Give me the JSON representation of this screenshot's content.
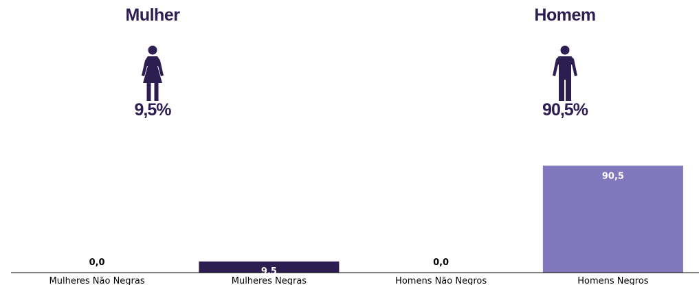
{
  "panels": {
    "female": {
      "title": "Mulher",
      "percent": "9,5%",
      "icon": "female-person-icon"
    },
    "male": {
      "title": "Homem",
      "percent": "90,5%",
      "icon": "male-person-icon"
    }
  },
  "colors": {
    "text_dark": "#2c1e50",
    "bar_dark": "#2c1e50",
    "bar_light": "#8177bd",
    "axis": "#000000"
  },
  "chart_data": {
    "type": "bar",
    "categories": [
      "Mulheres Não Negras",
      "Mulheres Negras",
      "Homens Não Negros",
      "Homens Negros"
    ],
    "values": [
      0.0,
      9.5,
      0.0,
      90.5
    ],
    "value_labels": [
      "0,0",
      "9,5",
      "0,0",
      "90,5"
    ],
    "bar_colors": [
      "#2c1e50",
      "#2c1e50",
      "#8177bd",
      "#8177bd"
    ],
    "ylim": [
      0,
      100
    ],
    "title": "",
    "xlabel": "",
    "ylabel": "",
    "grid": false,
    "legend": "none"
  }
}
